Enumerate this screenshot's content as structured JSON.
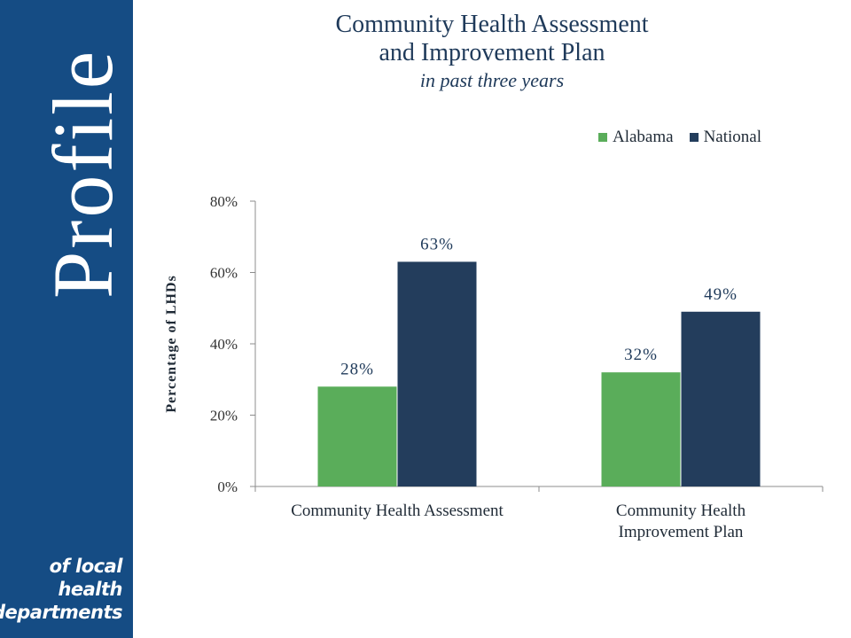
{
  "sidebar": {
    "brand_word": "Profile",
    "tagline_lines": [
      "of local",
      "health",
      "departments"
    ]
  },
  "colors": {
    "sidebar_bg": "#154c84",
    "alabama": "#5aad5a",
    "national": "#233d5c",
    "title_text": "#1f3a5a"
  },
  "chart_data": {
    "type": "bar",
    "title": "Community Health Assessment and Improvement Plan",
    "title_lines": [
      "Community Health Assessment",
      "and Improvement Plan"
    ],
    "subtitle": "in past three years",
    "ylabel": "Percentage of LHDs",
    "xlabel": "",
    "ylim": [
      0,
      80
    ],
    "yticks": [
      "0%",
      "20%",
      "40%",
      "60%",
      "80%"
    ],
    "ytick_values": [
      0,
      20,
      40,
      60,
      80
    ],
    "categories": [
      "Community Health Assessment",
      "Community Health Improvement Plan"
    ],
    "category_label_lines": [
      [
        "Community Health Assessment"
      ],
      [
        "Community Health",
        "Improvement Plan"
      ]
    ],
    "series": [
      {
        "name": "Alabama",
        "values": [
          28,
          32
        ],
        "labels": [
          "28%",
          "32%"
        ],
        "color": "#5aad5a"
      },
      {
        "name": "National",
        "values": [
          63,
          49
        ],
        "labels": [
          "63%",
          "49%"
        ],
        "color": "#233d5c"
      }
    ],
    "legend_position": "top-right",
    "grid": false
  }
}
